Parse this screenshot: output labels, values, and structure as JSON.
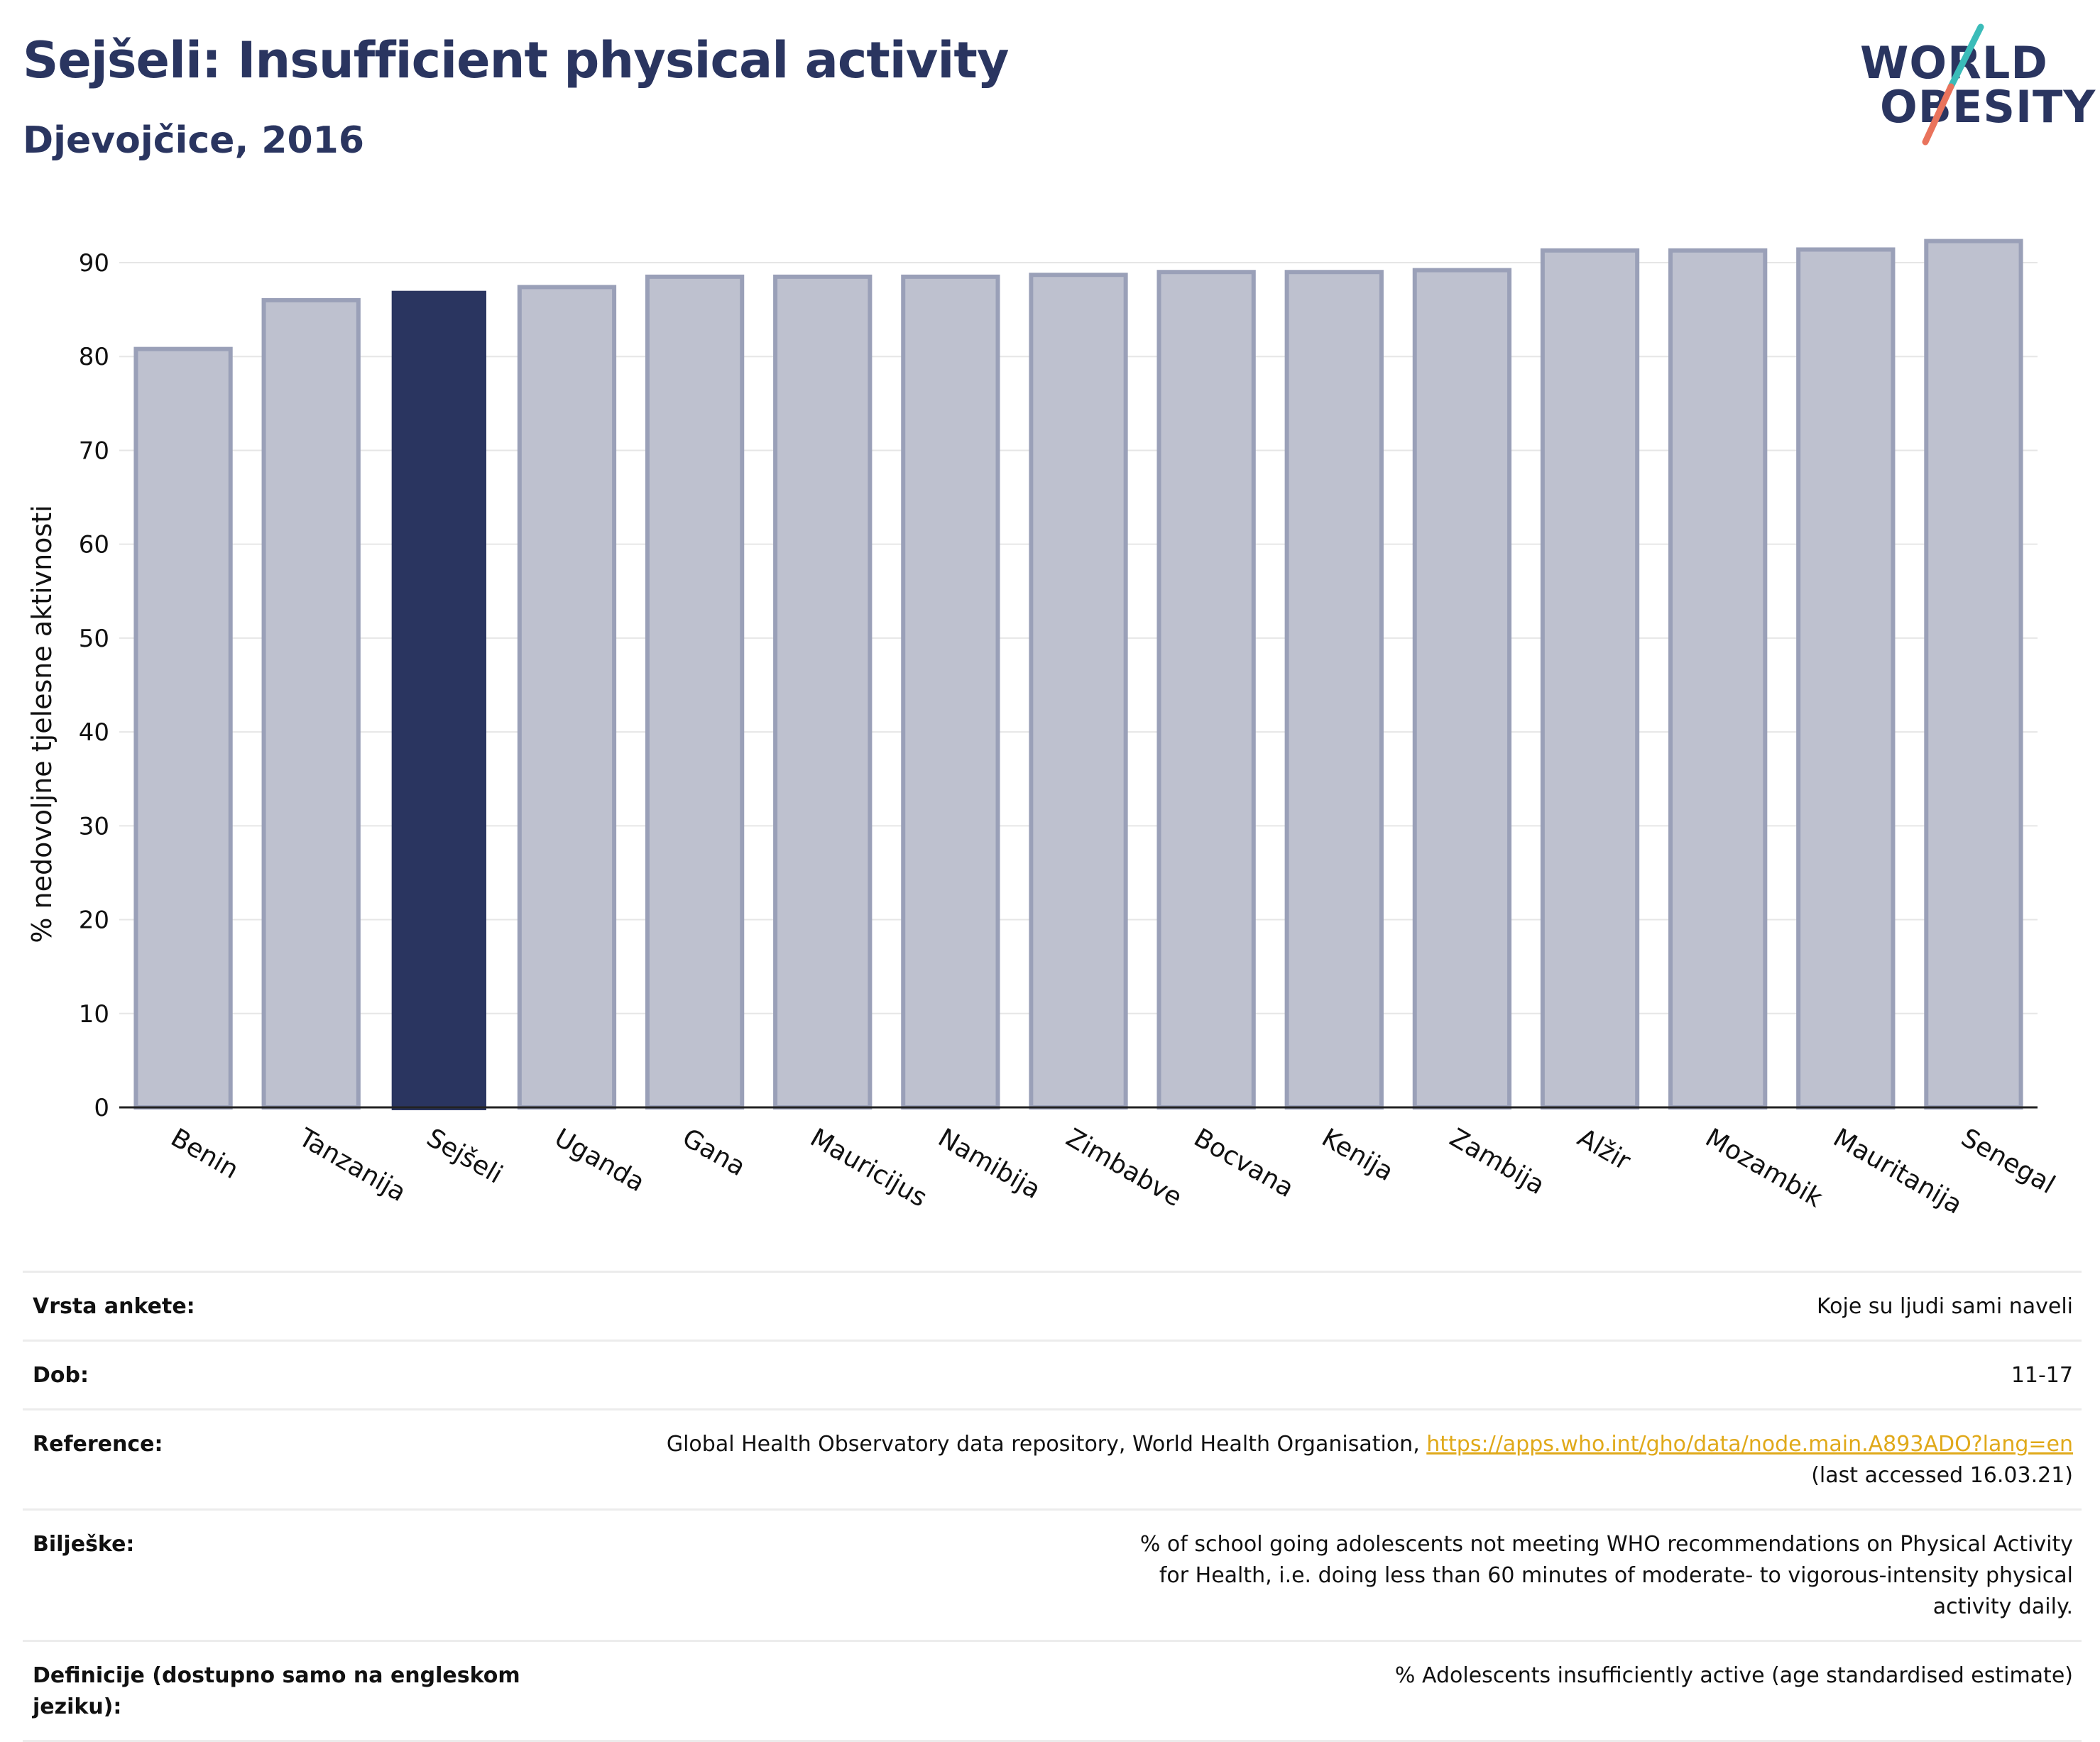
{
  "header": {
    "title": "Sejšeli: Insufficient physical activity",
    "subtitle": "Djevojčice, 2016"
  },
  "logo": {
    "line1": "WORLD",
    "line2": "OBESITY",
    "accent_colors": [
      "#3bbcb9",
      "#e9735c"
    ]
  },
  "colors": {
    "highlight": "#2a3560",
    "bar": "#bec1cf",
    "bar_border": "#9aa0b8"
  },
  "chart_data": {
    "type": "bar",
    "categories": [
      "Benin",
      "Tanzanija",
      "Sejšeli",
      "Uganda",
      "Gana",
      "Mauricijus",
      "Namibija",
      "Zimbabve",
      "Bocvana",
      "Kenija",
      "Zambija",
      "Alžir",
      "Mozambik",
      "Mauritanija",
      "Senegal"
    ],
    "values": [
      80.8,
      86.0,
      87.0,
      87.4,
      88.5,
      88.5,
      88.5,
      88.7,
      89.0,
      89.0,
      89.2,
      91.3,
      91.3,
      91.4,
      92.3
    ],
    "highlight": "Sejšeli",
    "ylabel": "% nedovoljne tjelesne aktivnosti",
    "ylim": [
      0,
      93
    ],
    "yticks": [
      0,
      10,
      20,
      30,
      40,
      50,
      60,
      70,
      80,
      90
    ],
    "grid": true
  },
  "info": [
    {
      "key": "Vrsta ankete:",
      "value": "Koje su ljudi sami naveli"
    },
    {
      "key": "Dob:",
      "value": "11-17"
    },
    {
      "key": "Reference:",
      "value": "Global Health Observatory data repository, World Health Organisation, ",
      "link": "https://apps.who.int/gho/data/node.main.A893ADO?lang=en",
      "value2": "(last accessed 16.03.21)"
    },
    {
      "key": "Bilješke:",
      "value": "% of school going adolescents not meeting WHO recommendations on Physical Activity for Health, i.e. doing less than 60 minutes of moderate- to vigorous-intensity physical activity daily."
    },
    {
      "key": "Definicije (dostupno samo na engleskom jeziku):",
      "value": "% Adolescents insufficiently active (age standardised estimate)"
    }
  ]
}
